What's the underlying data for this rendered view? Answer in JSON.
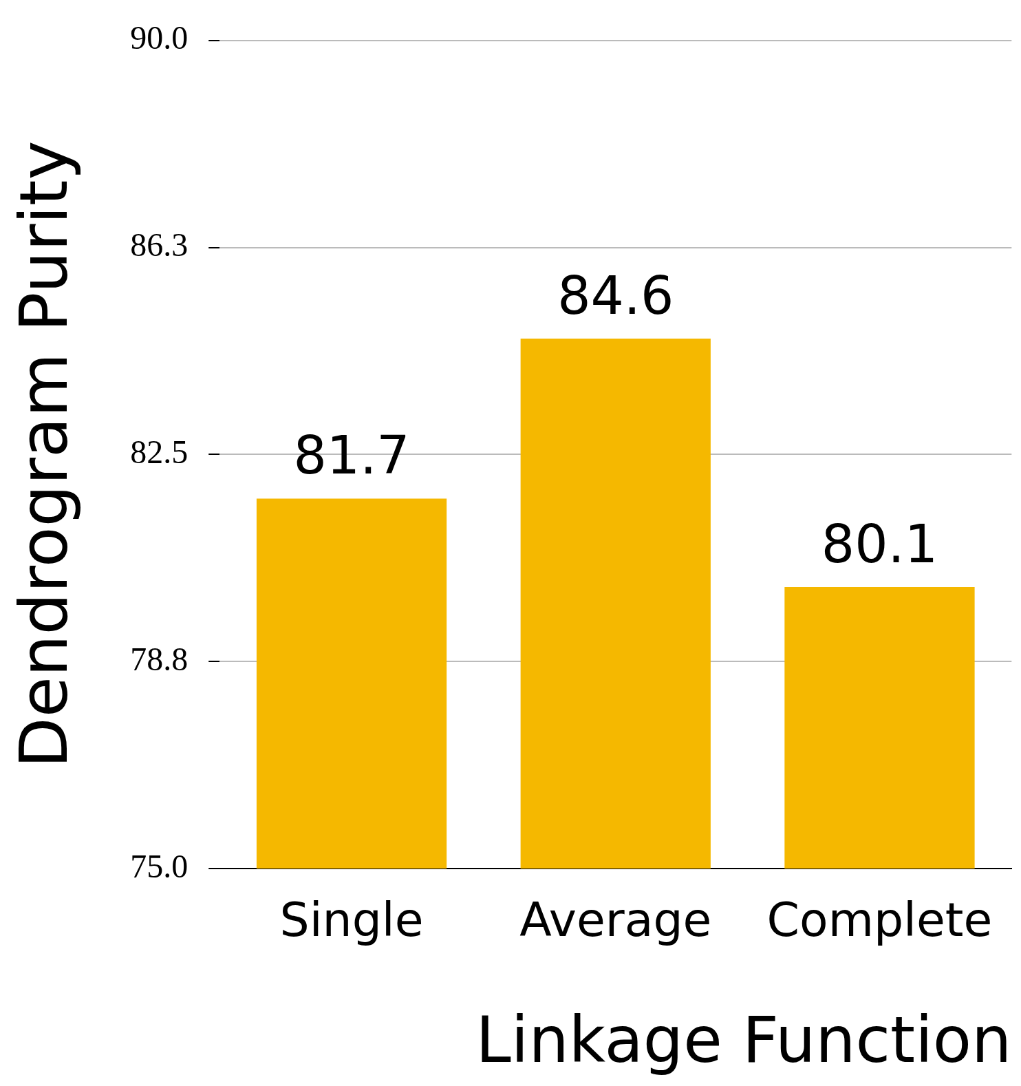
{
  "chart_data": {
    "type": "bar",
    "xlabel": "Linkage Function",
    "ylabel": "Dendrogram Purity",
    "categories": [
      "Single",
      "Average",
      "Complete"
    ],
    "values": [
      81.7,
      84.6,
      80.1
    ],
    "color": "#f5b800",
    "ylim": [
      75,
      90
    ],
    "yticks": [
      {
        "value": 75,
        "label": "75.0"
      },
      {
        "value": 78.75,
        "label": "78.8"
      },
      {
        "value": 82.5,
        "label": "82.5"
      },
      {
        "value": 86.25,
        "label": "86.3"
      },
      {
        "value": 90,
        "label": "90.0"
      }
    ],
    "grid": "y",
    "data_labels": true,
    "legend": false
  }
}
